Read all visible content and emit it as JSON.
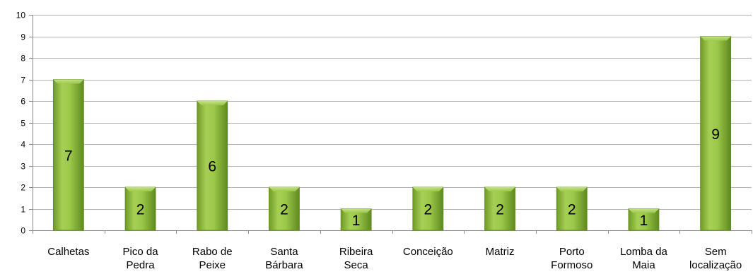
{
  "chart_data": {
    "type": "bar",
    "title": "",
    "xlabel": "",
    "ylabel": "",
    "ylim": [
      0,
      10
    ],
    "yticks": [
      "0",
      "1",
      "2",
      "3",
      "4",
      "5",
      "6",
      "7",
      "8",
      "9",
      "10"
    ],
    "grid": true,
    "legend": "none",
    "bar_color": "#8cb83a",
    "bar_color_light": "#b6dc6a",
    "bar_color_dark": "#5f8a1e",
    "categories": [
      [
        "Calhetas"
      ],
      [
        "Pico da",
        "Pedra"
      ],
      [
        "Rabo de",
        "Peixe"
      ],
      [
        "Santa",
        "Bárbara"
      ],
      [
        "Ribeira",
        "Seca"
      ],
      [
        "Conceição"
      ],
      [
        "Matriz"
      ],
      [
        "Porto",
        "Formoso"
      ],
      [
        "Lomba da",
        "Maia"
      ],
      [
        "Sem",
        "localização"
      ]
    ],
    "values": [
      7,
      2,
      6,
      2,
      1,
      2,
      2,
      2,
      1,
      9
    ],
    "data_labels": [
      "7",
      "2",
      "6",
      "2",
      "1",
      "2",
      "2",
      "2",
      "1",
      "9"
    ]
  }
}
